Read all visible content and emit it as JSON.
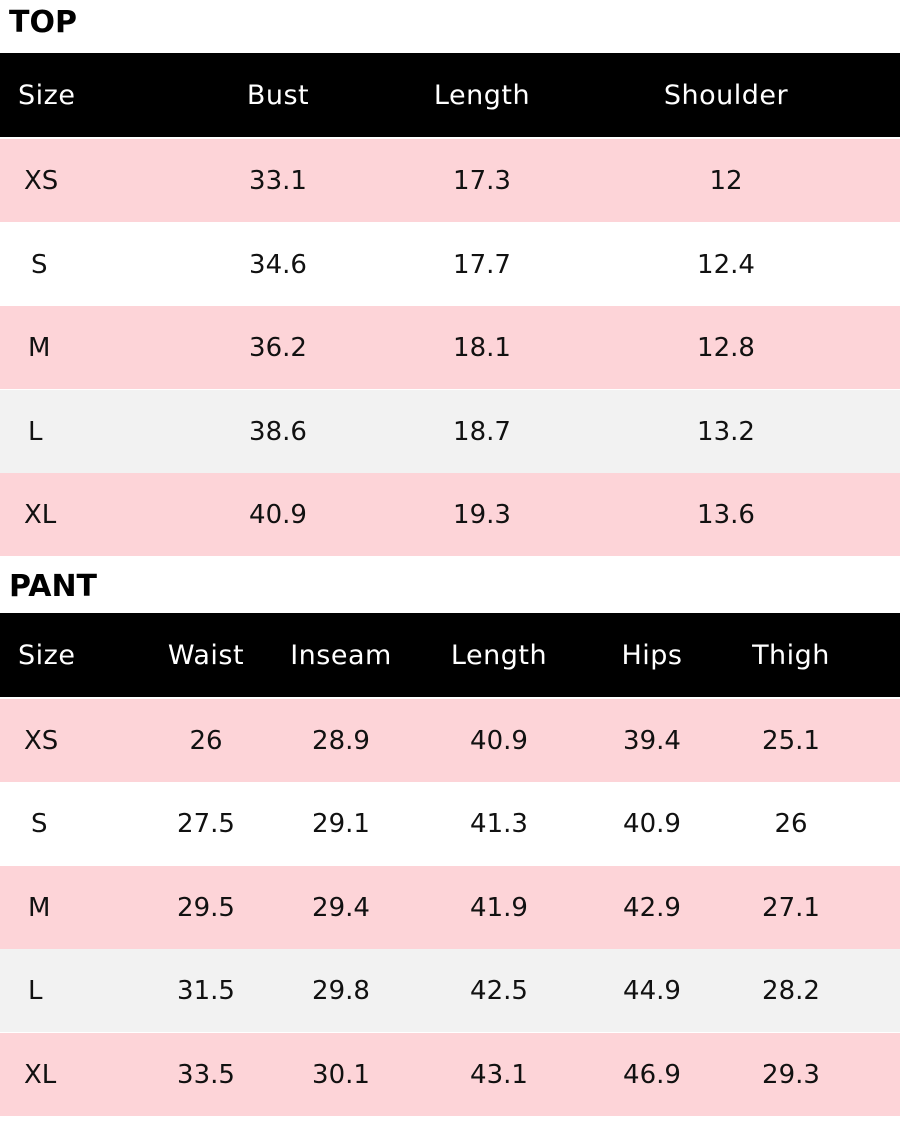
{
  "colors": {
    "header_bg": "#000000",
    "header_text": "#ffffff",
    "row_pink": "#fdd4d8",
    "row_white": "#ffffff",
    "row_gray": "#f2f2f2"
  },
  "top": {
    "title": "TOP",
    "headers": [
      "Size",
      "Bust",
      "Length",
      "Shoulder"
    ],
    "rows": [
      [
        "XS",
        "33.1",
        "17.3",
        "12"
      ],
      [
        "S",
        "34.6",
        "17.7",
        "12.4"
      ],
      [
        "M",
        "36.2",
        "18.1",
        "12.8"
      ],
      [
        "L",
        "38.6",
        "18.7",
        "13.2"
      ],
      [
        "XL",
        "40.9",
        "19.3",
        "13.6"
      ]
    ]
  },
  "pant": {
    "title": "PANT",
    "headers": [
      "Size",
      "Waist",
      "Inseam",
      "Length",
      "Hips",
      "Thigh"
    ],
    "rows": [
      [
        "XS",
        "26",
        "28.9",
        "40.9",
        "39.4",
        "25.1"
      ],
      [
        "S",
        "27.5",
        "29.1",
        "41.3",
        "40.9",
        "26"
      ],
      [
        "M",
        "29.5",
        "29.4",
        "41.9",
        "42.9",
        "27.1"
      ],
      [
        "L",
        "31.5",
        "29.8",
        "42.5",
        "44.9",
        "28.2"
      ],
      [
        "XL",
        "33.5",
        "30.1",
        "43.1",
        "46.9",
        "29.3"
      ]
    ]
  }
}
